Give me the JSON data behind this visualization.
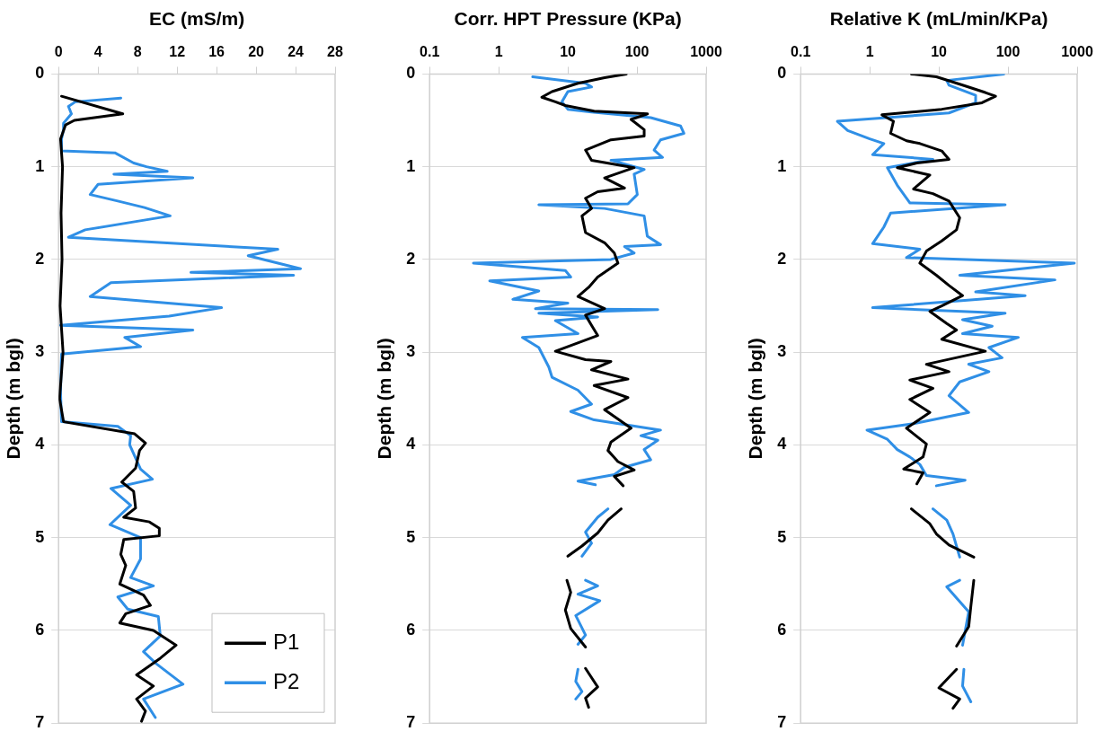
{
  "chart_data": [
    {
      "type": "line",
      "xlabel": "EC (mS/m)",
      "ylabel": "Depth (m bgl)",
      "xlim": [
        0,
        28
      ],
      "xticks": [
        0,
        4,
        8,
        12,
        16,
        20,
        24,
        28
      ],
      "ylim": [
        7,
        0
      ],
      "yticks": [
        0,
        1,
        2,
        3,
        4,
        5,
        6,
        7
      ],
      "grid": "y",
      "legend": "bottom right",
      "series": [
        {
          "name": "P1",
          "color": "#000000",
          "x": [
            0.3,
            6.5,
            1.6,
            0.7,
            0.2,
            0.4,
            0.25,
            0.35,
            0.15,
            0.45,
            0.1,
            0.5,
            7.7,
            8.8,
            8.2,
            7.8,
            6.4,
            7.6,
            7.8,
            6.6,
            9.2,
            10.2,
            10.2,
            6.6,
            6.3,
            6.8,
            6.2,
            8.6,
            9.3,
            6.8,
            6.2,
            9.6,
            11.9,
            10.3,
            7.9,
            9.6,
            7.9,
            8.8,
            8.4
          ],
          "values": [
            0.24,
            0.43,
            0.5,
            0.55,
            0.7,
            1.0,
            1.5,
            2.0,
            2.5,
            3.0,
            3.5,
            3.75,
            3.88,
            3.98,
            4.06,
            4.25,
            4.4,
            4.5,
            4.68,
            4.78,
            4.83,
            4.9,
            4.98,
            5.02,
            5.18,
            5.3,
            5.5,
            5.62,
            5.73,
            5.82,
            5.92,
            6.0,
            6.16,
            6.3,
            6.48,
            6.6,
            6.74,
            6.87,
            6.98
          ]
        },
        {
          "name": "P2",
          "color": "#2f8fe6",
          "x": [
            6.3,
            1.7,
            1.0,
            1.3,
            0.5,
            0.5,
            0.3,
            0.3,
            5.7,
            7.6,
            8.9,
            11.0,
            5.6,
            13.6,
            4.0,
            3.2,
            6.0,
            8.7,
            11.3,
            2.7,
            1.0,
            10.6,
            22.2,
            19.2,
            24.5,
            13.4,
            23.8,
            5.3,
            3.2,
            16.5,
            11.2,
            0.2,
            13.6,
            6.7,
            8.3,
            0.3,
            0.2,
            0.3,
            6.0,
            7.3,
            7.2,
            8.3,
            9.5,
            5.3,
            7.3,
            5.2,
            8.3,
            8.3,
            7.3,
            9.6,
            6.0,
            7.0,
            10.1,
            10.3,
            8.6,
            9.9,
            12.6,
            8.6,
            9.8
          ],
          "values": [
            0.26,
            0.3,
            0.35,
            0.43,
            0.53,
            0.6,
            0.7,
            0.83,
            0.85,
            0.96,
            1.0,
            1.05,
            1.08,
            1.12,
            1.19,
            1.3,
            1.37,
            1.44,
            1.53,
            1.68,
            1.76,
            1.82,
            1.89,
            1.96,
            2.1,
            2.14,
            2.17,
            2.25,
            2.4,
            2.52,
            2.61,
            2.71,
            2.76,
            2.84,
            2.94,
            3.02,
            3.43,
            3.75,
            3.8,
            3.9,
            4.0,
            4.26,
            4.37,
            4.47,
            4.65,
            4.86,
            5.0,
            5.23,
            5.43,
            5.52,
            5.64,
            5.77,
            5.85,
            6.06,
            6.23,
            6.36,
            6.58,
            6.74,
            6.94
          ]
        }
      ]
    },
    {
      "type": "line",
      "xlabel": "Corr. HPT Pressure (KPa)",
      "ylabel": "Depth (m bgl)",
      "log": "x",
      "xlim": [
        0.1,
        1000
      ],
      "xticks": [
        0.1,
        1,
        10,
        100,
        1000
      ],
      "ylim": [
        7,
        0
      ],
      "yticks": [
        0,
        1,
        2,
        3,
        4,
        5,
        6,
        7
      ],
      "grid": "y",
      "series": [
        {
          "color": "#000000",
          "x": [
            70,
            34,
            14,
            5.9,
            4.2,
            6.6,
            9.2,
            24,
            142,
            82,
            127,
            127,
            42,
            18,
            22,
            91,
            34,
            66,
            27,
            18,
            22,
            16,
            18,
            34,
            47,
            53,
            27,
            20,
            14,
            34,
            18,
            22,
            27,
            6.6,
            18,
            42,
            22,
            74,
            24,
            74,
            34,
            82,
            42,
            38,
            53,
            91,
            47,
            63,
            null,
            59,
            38,
            27,
            16,
            10,
            null,
            9.7,
            11,
            9.2,
            11,
            18,
            null,
            18,
            27,
            18,
            20
          ],
          "values": [
            0,
            0.04,
            0.1,
            0.19,
            0.25,
            0.3,
            0.34,
            0.4,
            0.43,
            0.49,
            0.6,
            0.67,
            0.71,
            0.82,
            0.93,
            1.01,
            1.12,
            1.23,
            1.27,
            1.34,
            1.45,
            1.53,
            1.71,
            1.82,
            1.93,
            2.04,
            2.19,
            2.3,
            2.4,
            2.53,
            2.6,
            2.71,
            2.82,
            2.99,
            3.08,
            3.1,
            3.19,
            3.29,
            3.36,
            3.49,
            3.62,
            3.82,
            3.97,
            4.06,
            4.18,
            4.27,
            4.34,
            4.44,
            null,
            4.69,
            4.81,
            4.95,
            5.09,
            5.2,
            null,
            5.46,
            5.59,
            5.78,
            5.98,
            6.18,
            null,
            6.41,
            6.61,
            6.73,
            6.83
          ]
        },
        {
          "color": "#2f8fe6",
          "x": [
            3.1,
            18,
            22,
            10,
            8.2,
            10,
            22,
            158,
            426,
            477,
            219,
            177,
            234,
            42,
            127,
            91,
            101,
            74,
            3.8,
            34,
            127,
            141,
            219,
            66,
            91,
            42,
            0.43,
            9.2,
            11,
            0.74,
            3.8,
            1.6,
            10,
            3.4,
            200,
            3.8,
            27,
            6.6,
            14,
            2.2,
            3.8,
            5.3,
            5.9,
            14,
            22,
            11,
            24,
            219,
            114,
            200,
            127,
            158,
            66,
            47,
            14,
            25,
            null,
            38,
            27,
            18,
            22,
            16,
            null,
            18,
            27,
            14,
            29,
            13,
            18,
            14,
            null,
            14,
            13,
            16,
            13
          ],
          "values": [
            0.03,
            0.1,
            0.14,
            0.19,
            0.3,
            0.38,
            0.41,
            0.47,
            0.56,
            0.64,
            0.71,
            0.82,
            0.9,
            0.93,
            1.03,
            1.08,
            1.3,
            1.4,
            1.41,
            1.45,
            1.53,
            1.75,
            1.84,
            1.86,
            1.93,
            2.0,
            2.04,
            2.12,
            2.19,
            2.23,
            2.34,
            2.43,
            2.47,
            2.53,
            2.54,
            2.58,
            2.62,
            2.66,
            2.8,
            2.84,
            2.95,
            3.16,
            3.27,
            3.41,
            3.56,
            3.64,
            3.73,
            3.84,
            3.9,
            3.95,
            4.05,
            4.16,
            4.24,
            4.32,
            4.39,
            4.43,
            null,
            4.69,
            4.78,
            4.94,
            5.06,
            5.2,
            null,
            5.46,
            5.52,
            5.61,
            5.68,
            5.84,
            6.05,
            6.15,
            null,
            6.42,
            6.55,
            6.66,
            6.74
          ]
        }
      ]
    },
    {
      "type": "line",
      "xlabel": "Relative K (mL/min/KPa)",
      "ylabel": "Depth (m bgl)",
      "log": "x",
      "xlim": [
        0.1,
        1000
      ],
      "xticks": [
        0.1,
        1,
        10,
        100,
        1000
      ],
      "ylim": [
        7,
        0
      ],
      "yticks": [
        0,
        1,
        2,
        3,
        4,
        5,
        6,
        7
      ],
      "grid": "y",
      "series": [
        {
          "color": "#000000",
          "x": [
            4.0,
            9.2,
            22,
            47,
            66,
            42,
            11,
            1.5,
            2.2,
            2.0,
            3.4,
            5.3,
            11,
            14,
            4.8,
            2.5,
            7.4,
            4.3,
            8.2,
            14,
            20,
            18,
            11,
            6.6,
            5.3,
            9.2,
            14,
            22,
            11,
            7.4,
            13,
            18,
            11,
            47,
            6.6,
            14,
            3.8,
            8.2,
            3.8,
            7.4,
            3.4,
            6.6,
            5.9,
            3.1,
            5.9,
            4.8,
            null,
            4.0,
            7.4,
            9.2,
            14,
            32,
            null,
            32,
            29,
            27,
            18,
            null,
            18,
            10,
            20,
            16
          ],
          "values": [
            0,
            0.03,
            0.12,
            0.2,
            0.24,
            0.31,
            0.38,
            0.44,
            0.51,
            0.64,
            0.72,
            0.75,
            0.83,
            0.92,
            0.96,
            1.01,
            1.09,
            1.24,
            1.29,
            1.37,
            1.55,
            1.68,
            1.8,
            1.91,
            2.04,
            2.17,
            2.28,
            2.39,
            2.5,
            2.56,
            2.69,
            2.76,
            2.86,
            2.99,
            3.13,
            3.21,
            3.3,
            3.39,
            3.51,
            3.65,
            3.82,
            3.99,
            4.13,
            4.26,
            4.3,
            4.42,
            null,
            4.69,
            4.85,
            4.96,
            5.08,
            5.21,
            null,
            5.46,
            5.74,
            5.96,
            6.17,
            null,
            6.42,
            6.62,
            6.74,
            6.84
          ]
        },
        {
          "color": "#2f8fe6",
          "x": [
            87,
            13,
            14,
            34,
            34,
            14,
            0.34,
            0.48,
            1.0,
            1.6,
            1.1,
            8.2,
            1.8,
            2.5,
            3.8,
            91,
            2.0,
            1.6,
            1.1,
            5.3,
            3.4,
            912,
            20,
            477,
            34,
            177,
            1.1,
            91,
            22,
            59,
            22,
            141,
            53,
            82,
            27,
            53,
            20,
            14,
            27,
            4.3,
            0.91,
            1.8,
            2.5,
            3.8,
            5.3,
            6.6,
            24,
            9.2,
            null,
            8.2,
            13,
            16,
            20,
            null,
            20,
            13,
            27,
            22,
            null,
            23,
            22,
            29
          ],
          "values": [
            0,
            0.07,
            0.12,
            0.23,
            0.31,
            0.42,
            0.51,
            0.61,
            0.7,
            0.75,
            0.87,
            0.92,
            1.01,
            1.2,
            1.39,
            1.41,
            1.5,
            1.65,
            1.83,
            1.89,
            1.98,
            2.04,
            2.17,
            2.22,
            2.35,
            2.39,
            2.52,
            2.58,
            2.65,
            2.72,
            2.8,
            2.84,
            2.95,
            3.06,
            3.13,
            3.21,
            3.32,
            3.47,
            3.65,
            3.77,
            3.84,
            3.94,
            4.05,
            4.13,
            4.21,
            4.33,
            4.38,
            4.44,
            null,
            4.69,
            4.81,
            4.96,
            5.21,
            null,
            5.46,
            5.53,
            5.8,
            6.16,
            null,
            6.42,
            6.6,
            6.77
          ]
        }
      ]
    }
  ]
}
